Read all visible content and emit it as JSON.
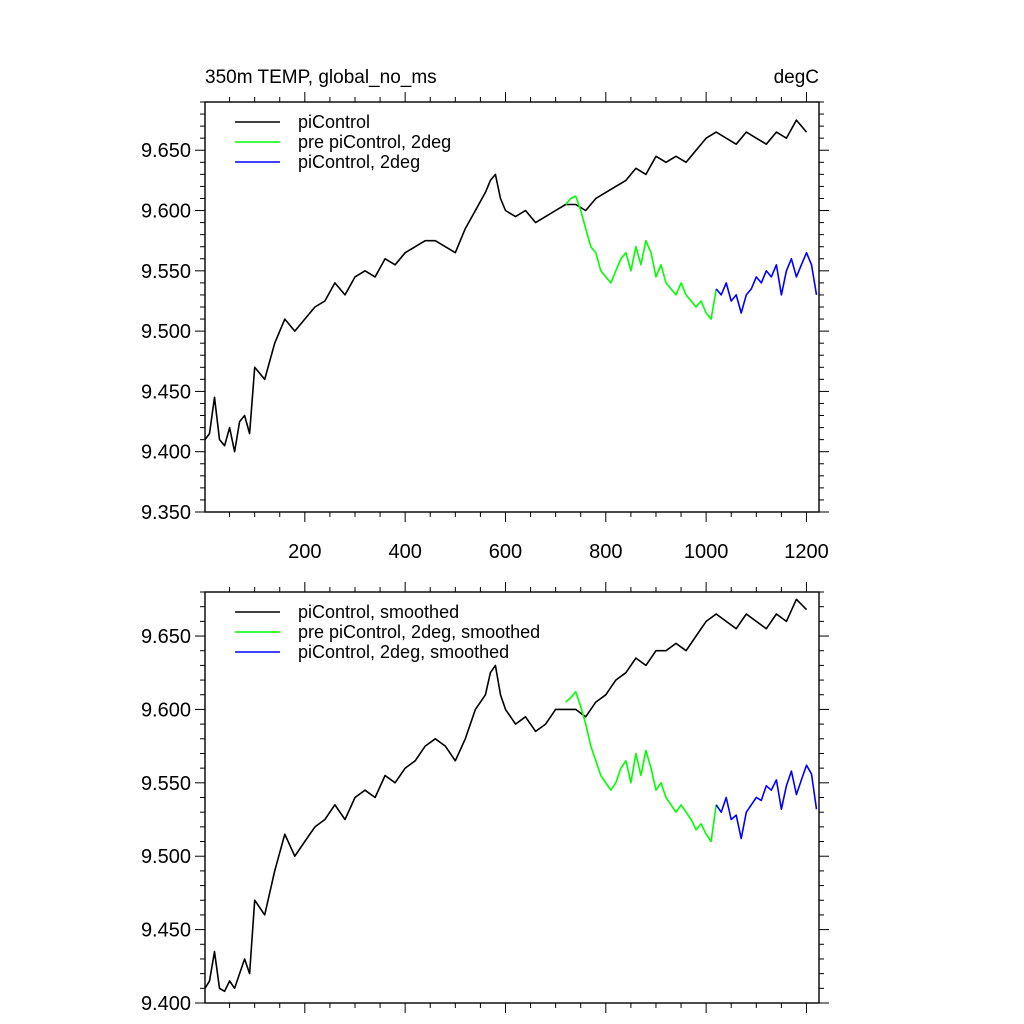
{
  "chart_data": [
    {
      "type": "line",
      "title_left": "350m TEMP, global_no_ms",
      "title_right": "degC",
      "xlabel": "",
      "ylabel": "",
      "xlim": [
        1,
        1225
      ],
      "ylim": [
        9.35,
        9.69
      ],
      "x_ticks": [
        200,
        400,
        600,
        800,
        1000,
        1200
      ],
      "y_ticks": [
        9.35,
        9.4,
        9.45,
        9.5,
        9.55,
        9.6,
        9.65
      ],
      "x_tick_labels": [
        "200",
        "400",
        "600",
        "800",
        "1000",
        "1200"
      ],
      "y_tick_labels": [
        "9.350",
        "9.400",
        "9.450",
        "9.500",
        "9.550",
        "9.600",
        "9.650"
      ],
      "grid": false,
      "legend_position": "top-left",
      "series": [
        {
          "name": "piControl",
          "color": "#000000",
          "x": [
            1,
            10,
            20,
            30,
            40,
            50,
            60,
            70,
            80,
            90,
            100,
            120,
            140,
            160,
            180,
            200,
            220,
            240,
            260,
            280,
            300,
            320,
            340,
            360,
            380,
            400,
            420,
            440,
            460,
            480,
            500,
            520,
            540,
            560,
            570,
            580,
            590,
            600,
            620,
            640,
            660,
            680,
            700,
            720,
            740,
            760,
            780,
            800,
            820,
            840,
            860,
            880,
            900,
            920,
            940,
            960,
            980,
            1000,
            1020,
            1040,
            1060,
            1080,
            1100,
            1120,
            1140,
            1160,
            1180,
            1200
          ],
          "y": [
            9.41,
            9.415,
            9.445,
            9.41,
            9.405,
            9.42,
            9.4,
            9.425,
            9.43,
            9.415,
            9.47,
            9.46,
            9.49,
            9.51,
            9.5,
            9.51,
            9.52,
            9.525,
            9.54,
            9.53,
            9.545,
            9.55,
            9.545,
            9.56,
            9.555,
            9.565,
            9.57,
            9.575,
            9.575,
            9.57,
            9.565,
            9.585,
            9.6,
            9.615,
            9.625,
            9.63,
            9.61,
            9.6,
            9.595,
            9.6,
            9.59,
            9.595,
            9.6,
            9.605,
            9.605,
            9.6,
            9.61,
            9.615,
            9.62,
            9.625,
            9.635,
            9.63,
            9.645,
            9.64,
            9.645,
            9.64,
            9.65,
            9.66,
            9.665,
            9.66,
            9.655,
            9.665,
            9.66,
            9.655,
            9.665,
            9.66,
            9.675,
            9.665
          ]
        },
        {
          "name": "pre piControl, 2deg",
          "color": "#00ff00",
          "x": [
            720,
            730,
            740,
            750,
            760,
            770,
            780,
            790,
            800,
            810,
            820,
            830,
            840,
            850,
            860,
            870,
            880,
            890,
            900,
            910,
            920,
            930,
            940,
            950,
            960,
            970,
            980,
            990,
            1000,
            1010,
            1020
          ],
          "y": [
            9.605,
            9.61,
            9.612,
            9.6,
            9.585,
            9.57,
            9.565,
            9.55,
            9.545,
            9.54,
            9.55,
            9.56,
            9.565,
            9.55,
            9.57,
            9.555,
            9.575,
            9.565,
            9.545,
            9.555,
            9.54,
            9.535,
            9.53,
            9.54,
            9.53,
            9.525,
            9.52,
            9.525,
            9.515,
            9.51,
            9.535
          ]
        },
        {
          "name": "piControl, 2deg",
          "color": "#0000ff",
          "x": [
            1020,
            1030,
            1040,
            1050,
            1060,
            1070,
            1080,
            1090,
            1100,
            1110,
            1120,
            1130,
            1140,
            1150,
            1160,
            1170,
            1180,
            1190,
            1200,
            1210,
            1220
          ],
          "y": [
            9.535,
            9.53,
            9.54,
            9.525,
            9.53,
            9.515,
            9.53,
            9.535,
            9.545,
            9.54,
            9.55,
            9.545,
            9.555,
            9.53,
            9.55,
            9.56,
            9.545,
            9.555,
            9.565,
            9.555,
            9.53
          ]
        }
      ]
    },
    {
      "type": "line",
      "title_left": "",
      "title_right": "",
      "xlabel": "",
      "ylabel": "",
      "xlim": [
        1,
        1225
      ],
      "ylim": [
        9.4,
        9.68
      ],
      "x_ticks": [
        200,
        400,
        600,
        800,
        1000,
        1200
      ],
      "y_ticks": [
        9.4,
        9.45,
        9.5,
        9.55,
        9.6,
        9.65
      ],
      "y_tick_labels": [
        "9.400",
        "9.450",
        "9.500",
        "9.550",
        "9.600",
        "9.650"
      ],
      "grid": false,
      "legend_position": "top-left",
      "series": [
        {
          "name": "piControl, smoothed",
          "color": "#000000",
          "x": [
            1,
            10,
            20,
            30,
            40,
            50,
            60,
            70,
            80,
            90,
            100,
            120,
            140,
            160,
            180,
            200,
            220,
            240,
            260,
            280,
            300,
            320,
            340,
            360,
            380,
            400,
            420,
            440,
            460,
            480,
            500,
            520,
            540,
            560,
            570,
            580,
            590,
            600,
            620,
            640,
            660,
            680,
            700,
            720,
            740,
            760,
            780,
            800,
            820,
            840,
            860,
            880,
            900,
            920,
            940,
            960,
            980,
            1000,
            1020,
            1040,
            1060,
            1080,
            1100,
            1120,
            1140,
            1160,
            1180,
            1200
          ],
          "y": [
            9.41,
            9.415,
            9.435,
            9.41,
            9.408,
            9.415,
            9.41,
            9.42,
            9.43,
            9.42,
            9.47,
            9.46,
            9.49,
            9.515,
            9.5,
            9.51,
            9.52,
            9.525,
            9.535,
            9.525,
            9.54,
            9.545,
            9.54,
            9.555,
            9.55,
            9.56,
            9.565,
            9.575,
            9.58,
            9.575,
            9.565,
            9.58,
            9.6,
            9.61,
            9.625,
            9.63,
            9.61,
            9.6,
            9.59,
            9.595,
            9.585,
            9.59,
            9.6,
            9.6,
            9.6,
            9.595,
            9.605,
            9.61,
            9.62,
            9.625,
            9.635,
            9.63,
            9.64,
            9.64,
            9.645,
            9.64,
            9.65,
            9.66,
            9.665,
            9.66,
            9.655,
            9.665,
            9.66,
            9.655,
            9.665,
            9.66,
            9.675,
            9.668
          ]
        },
        {
          "name": "pre piControl, 2deg, smoothed",
          "color": "#00ff00",
          "x": [
            720,
            730,
            740,
            750,
            760,
            770,
            780,
            790,
            800,
            810,
            820,
            830,
            840,
            850,
            860,
            870,
            880,
            890,
            900,
            910,
            920,
            930,
            940,
            950,
            960,
            970,
            980,
            990,
            1000,
            1010,
            1020
          ],
          "y": [
            9.605,
            9.608,
            9.612,
            9.602,
            9.59,
            9.575,
            9.565,
            9.555,
            9.55,
            9.545,
            9.55,
            9.56,
            9.565,
            9.55,
            9.57,
            9.555,
            9.572,
            9.56,
            9.545,
            9.55,
            9.54,
            9.535,
            9.53,
            9.535,
            9.53,
            9.525,
            9.518,
            9.522,
            9.515,
            9.51,
            9.535
          ]
        },
        {
          "name": "piControl, 2deg, smoothed",
          "color": "#0000ff",
          "x": [
            1020,
            1030,
            1040,
            1050,
            1060,
            1070,
            1080,
            1090,
            1100,
            1110,
            1120,
            1130,
            1140,
            1150,
            1160,
            1170,
            1180,
            1190,
            1200,
            1210,
            1220
          ],
          "y": [
            9.535,
            9.53,
            9.54,
            9.525,
            9.528,
            9.512,
            9.53,
            9.535,
            9.54,
            9.538,
            9.548,
            9.545,
            9.552,
            9.532,
            9.548,
            9.558,
            9.542,
            9.552,
            9.562,
            9.556,
            9.532
          ]
        }
      ]
    }
  ]
}
